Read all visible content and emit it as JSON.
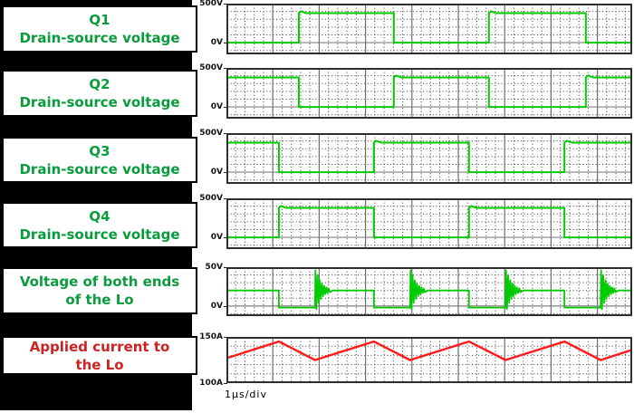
{
  "palette": {
    "page_bg": "#ffffff",
    "left_panel_bg": "#000000",
    "box_border": "#000000",
    "grid_minor_dot": "#3a3a3a",
    "grid_major_line": "#6e6e6e",
    "zero_line": "#808080",
    "plot_border": "#2e2e2e",
    "green_text": "#0a9b3c",
    "green_trace": "#00cc00",
    "red_text": "#cc2222",
    "red_trace": "#ff1a1a"
  },
  "chart_data": [
    {
      "type": "line",
      "title": "Q1 Drain-source voltage",
      "label_lines": [
        "Q1",
        "Drain-source voltage"
      ],
      "label_color": "#0a9b3c",
      "trace_color": "#00cc00",
      "xlabel": "1μs/div",
      "x_range_us": [
        0,
        8.75
      ],
      "x_major_us": 1.0,
      "x_minor_us": 0.2,
      "y_top_label": "500V",
      "y_bottom_label": "0V",
      "ylim": [
        -150,
        500
      ],
      "y_minor": 100,
      "zero_line": true,
      "waveform": {
        "kind": "square",
        "initial": "low",
        "low_v": 0,
        "high_v": 378,
        "overshoot_v": 402,
        "edges_us": [
          1.56,
          3.61,
          5.66,
          7.75
        ]
      }
    },
    {
      "type": "line",
      "title": "Q2 Drain-source voltage",
      "label_lines": [
        "Q2",
        "Drain-source voltage"
      ],
      "label_color": "#0a9b3c",
      "trace_color": "#00cc00",
      "xlabel": "1μs/div",
      "x_range_us": [
        0,
        8.75
      ],
      "x_major_us": 1.0,
      "x_minor_us": 0.2,
      "y_top_label": "500V",
      "y_bottom_label": "0V",
      "ylim": [
        -150,
        500
      ],
      "y_minor": 100,
      "zero_line": true,
      "waveform": {
        "kind": "square",
        "initial": "high",
        "low_v": 0,
        "high_v": 378,
        "overshoot_v": 402,
        "edges_us": [
          1.56,
          3.61,
          5.66,
          7.75
        ]
      }
    },
    {
      "type": "line",
      "title": "Q3 Drain-source voltage",
      "label_lines": [
        "Q3",
        "Drain-source voltage"
      ],
      "label_color": "#0a9b3c",
      "trace_color": "#00cc00",
      "xlabel": "1μs/div",
      "x_range_us": [
        0,
        8.75
      ],
      "x_major_us": 1.0,
      "x_minor_us": 0.2,
      "y_top_label": "500V",
      "y_bottom_label": "0V",
      "ylim": [
        -150,
        500
      ],
      "y_minor": 100,
      "zero_line": true,
      "waveform": {
        "kind": "square",
        "initial": "high",
        "low_v": 0,
        "high_v": 378,
        "overshoot_v": 402,
        "edges_us": [
          1.13,
          3.18,
          5.23,
          7.29
        ]
      }
    },
    {
      "type": "line",
      "title": "Q4 Drain-source voltage",
      "label_lines": [
        "Q4",
        "Drain-source voltage"
      ],
      "label_color": "#0a9b3c",
      "trace_color": "#00cc00",
      "xlabel": "1μs/div",
      "x_range_us": [
        0,
        8.75
      ],
      "x_major_us": 1.0,
      "x_minor_us": 0.2,
      "y_top_label": "500V",
      "y_bottom_label": "0V",
      "ylim": [
        -150,
        500
      ],
      "y_minor": 100,
      "zero_line": true,
      "waveform": {
        "kind": "square",
        "initial": "low",
        "low_v": 0,
        "high_v": 378,
        "overshoot_v": 402,
        "edges_us": [
          1.13,
          3.18,
          5.23,
          7.29
        ]
      }
    },
    {
      "type": "line",
      "title": "Voltage of both ends of the Lo",
      "label_lines": [
        "Voltage of both ends",
        "of the Lo"
      ],
      "label_color": "#0a9b3c",
      "trace_color": "#00cc00",
      "xlabel": "1μs/div",
      "x_range_us": [
        0,
        8.75
      ],
      "x_major_us": 1.0,
      "x_minor_us": 0.2,
      "y_top_label": "50V",
      "y_bottom_label": "0V",
      "ylim": [
        -13,
        50
      ],
      "y_minor": 10,
      "zero_line": true,
      "waveform": {
        "kind": "pwm_spike",
        "mid_v": 20,
        "low_v": -2,
        "spike_v": 46,
        "drop_times_us": [
          1.13,
          3.18,
          5.23,
          7.29
        ],
        "spike_times_us": [
          1.91,
          3.96,
          6.02,
          8.07
        ],
        "ring": {
          "half_period_us": 0.024,
          "half_cycles": 13,
          "start_amp_v": 24,
          "decay": 0.82
        }
      }
    },
    {
      "type": "line",
      "title": "Applied current to the Lo",
      "label_lines": [
        "Applied current to",
        "the Lo"
      ],
      "label_color": "#cc2222",
      "trace_color": "#ff1a1a",
      "xlabel": "1μs/div",
      "x_range_us": [
        0,
        8.75
      ],
      "x_major_us": 1.0,
      "x_minor_us": 0.2,
      "y_top_label": "150A",
      "y_bottom_label": "100A",
      "ylim": [
        100,
        150
      ],
      "y_minor": 10,
      "zero_line": false,
      "waveform": {
        "kind": "triangle",
        "start_a": 127,
        "end_a": 136,
        "peak_a": 145,
        "valley_a": 125,
        "peak_times_us": [
          1.13,
          3.18,
          5.23,
          7.29
        ],
        "valley_times_us": [
          1.91,
          3.96,
          6.02,
          8.07
        ]
      }
    }
  ]
}
